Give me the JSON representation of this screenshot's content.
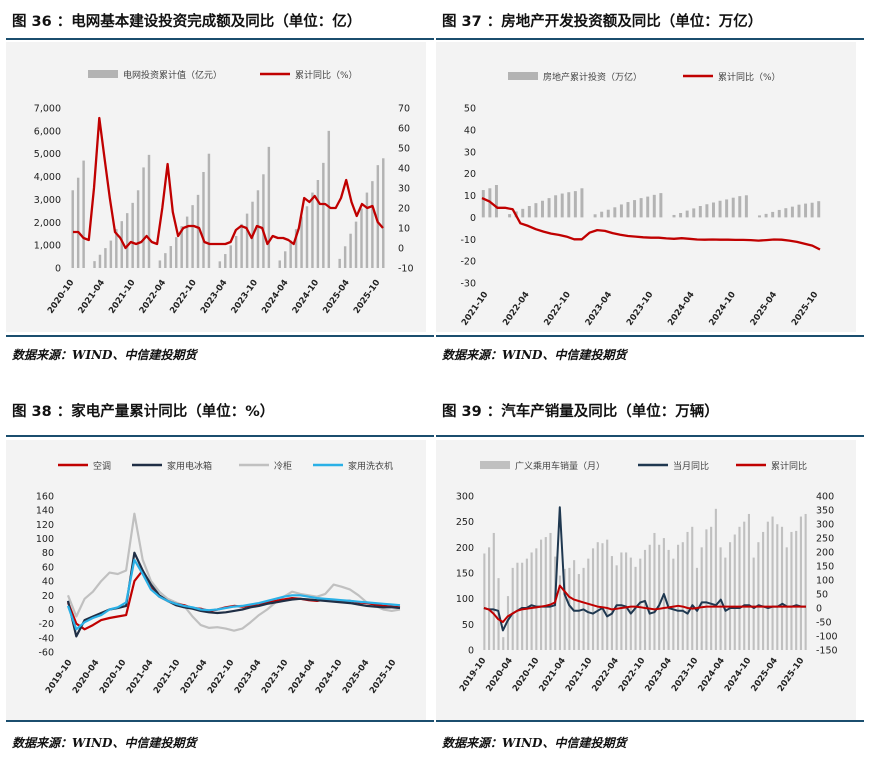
{
  "panels": [
    {
      "id": "p36",
      "title": "图 36 ：电网基本建设投资完成额及同比（单位：亿）",
      "source": "数据来源：WIND、中信建投期货",
      "chart_data": {
        "type": "bar+line",
        "legend": [
          "电网投资累计值（亿元）",
          "累计同比（%）"
        ],
        "legend_position": "top-center",
        "grid": false,
        "colors": {
          "bar": "#b3b3b3",
          "line": "#c00000"
        },
        "y_left": {
          "ticks": [
            "0",
            "1,000",
            "2,000",
            "3,000",
            "4,000",
            "5,000",
            "6,000",
            "7,000"
          ],
          "min": 0,
          "max": 7000
        },
        "y_right": {
          "ticks": [
            "-10",
            "0",
            "10",
            "20",
            "30",
            "40",
            "50",
            "60",
            "70"
          ],
          "min": -10,
          "max": 70
        },
        "x_ticks": [
          "2020-10",
          "2021-04",
          "2021-10",
          "2022-04",
          "2022-10",
          "2023-04",
          "2023-10",
          "2024-04",
          "2024-10",
          "2025-04",
          "2025-10"
        ],
        "bars": [
          3400,
          3950,
          4700,
          0,
          300,
          580,
          870,
          1200,
          1700,
          2050,
          2400,
          2850,
          3400,
          4400,
          4950,
          0,
          330,
          650,
          960,
          1350,
          1830,
          2250,
          2750,
          3200,
          4200,
          5000,
          0,
          290,
          610,
          990,
          1400,
          1930,
          2380,
          2900,
          3400,
          4100,
          5300,
          0,
          330,
          730,
          1200,
          1700,
          2250,
          2700,
          3300,
          3850,
          4600,
          6000,
          0,
          400,
          950,
          1500,
          2030,
          2600,
          3300,
          3800,
          4500,
          4800
        ],
        "line": [
          8,
          8,
          5,
          4,
          30,
          65,
          45,
          25,
          8,
          5,
          0,
          3,
          2,
          3,
          6,
          3,
          2,
          20,
          42,
          18,
          6,
          10,
          11,
          11,
          10,
          3,
          2,
          2,
          2,
          2,
          3,
          9,
          11,
          10,
          5,
          11,
          10,
          2,
          6,
          5,
          5,
          4,
          2,
          10,
          25,
          23,
          26,
          22,
          22,
          20,
          20,
          25,
          34,
          23,
          16,
          22,
          20,
          21,
          13,
          10
        ]
      }
    },
    {
      "id": "p37",
      "title": "图 37 ：房地产开发投资额及同比（单位：万亿）",
      "source": "数据来源：WIND、中信建投期货",
      "chart_data": {
        "type": "bar+line",
        "legend": [
          "房地产累计投资（万亿）",
          "累计同比（%）"
        ],
        "legend_position": "top-center",
        "grid": false,
        "colors": {
          "bar": "#b3b3b3",
          "line": "#c00000"
        },
        "y_ticks": [
          "-30",
          "-20",
          "-10",
          "0",
          "10",
          "20",
          "30",
          "40",
          "50"
        ],
        "ylim": [
          -30,
          50
        ],
        "x_ticks": [
          "2021-10",
          "2022-04",
          "2022-10",
          "2023-04",
          "2023-10",
          "2024-04",
          "2024-10",
          "2025-04",
          "2025-10"
        ],
        "bars": [
          12.5,
          13.3,
          14.8,
          0,
          1.5,
          2.7,
          3.9,
          5.2,
          6.5,
          7.6,
          8.8,
          10.1,
          10.9,
          11.5,
          12.0,
          13.3,
          0,
          1.4,
          2.6,
          3.5,
          4.6,
          5.9,
          7.0,
          7.9,
          8.8,
          9.5,
          10.3,
          11.1,
          0,
          1.1,
          2.0,
          3.1,
          4.1,
          5.2,
          6.0,
          6.8,
          7.6,
          8.2,
          9.0,
          9.7,
          10.1,
          0,
          0.9,
          1.6,
          2.5,
          3.4,
          4.2,
          4.9,
          5.8,
          6.3,
          6.7,
          7.4
        ]
      },
      "line_values": [
        8.8,
        7.2,
        4.4,
        4.4,
        3.7,
        -2.7,
        -3.9,
        -5.4,
        -6.5,
        -7.4,
        -8.0,
        -8.8,
        -10.0,
        -10.0,
        -7.0,
        -5.8,
        -6.2,
        -7.2,
        -7.9,
        -8.5,
        -8.8,
        -9.1,
        -9.3,
        -9.3,
        -9.6,
        -9.8,
        -9.5,
        -9.8,
        -10.1,
        -10.2,
        -10.1,
        -10.2,
        -10.2,
        -10.3,
        -10.3,
        -10.4,
        -10.6,
        -10.4,
        -10.1,
        -10.2,
        -10.6,
        -11.2,
        -12.1,
        -12.9,
        -14.7
      ]
    },
    {
      "id": "p38",
      "title": "图 38 ：家电产量累计同比（单位：%）",
      "source": "数据来源：WIND、中信建投期货",
      "chart_data": {
        "type": "line",
        "legend_position": "top-center",
        "grid": false,
        "y_ticks": [
          "-60",
          "-40",
          "-20",
          "0",
          "20",
          "40",
          "60",
          "80",
          "100",
          "120",
          "140",
          "160"
        ],
        "ylim": [
          -60,
          160
        ],
        "x_ticks": [
          "2019-10",
          "2020-04",
          "2020-10",
          "2021-04",
          "2021-10",
          "2022-04",
          "2022-10",
          "2023-04",
          "2023-10",
          "2024-04",
          "2024-10",
          "2025-04",
          "2025-10"
        ],
        "series": [
          {
            "name": "空调",
            "color": "#c00000",
            "values": [
              10,
              -20,
              -28,
              -22,
              -15,
              -12,
              -10,
              -8,
              40,
              55,
              30,
              18,
              12,
              8,
              6,
              2,
              1,
              -2,
              0,
              3,
              5,
              4,
              5,
              6,
              10,
              12,
              14,
              16,
              15,
              13,
              12,
              14,
              13,
              12,
              12,
              10,
              9,
              7,
              5,
              4,
              3
            ]
          },
          {
            "name": "家用电冰箱",
            "color": "#1f2e45",
            "values": [
              12,
              -38,
              -15,
              -10,
              -5,
              0,
              2,
              5,
              80,
              55,
              35,
              20,
              12,
              6,
              3,
              1,
              -2,
              -4,
              -5,
              -4,
              -2,
              0,
              3,
              5,
              8,
              10,
              12,
              14,
              15,
              14,
              13,
              12,
              11,
              10,
              9,
              7,
              5,
              4,
              3,
              3,
              2
            ]
          },
          {
            "name": "冷柜",
            "color": "#c0c0c0",
            "values": [
              20,
              -10,
              15,
              25,
              40,
              52,
              50,
              55,
              135,
              70,
              40,
              25,
              15,
              10,
              5,
              -10,
              -22,
              -26,
              -25,
              -27,
              -30,
              -27,
              -18,
              -8,
              0,
              10,
              18,
              25,
              22,
              20,
              18,
              22,
              35,
              32,
              28,
              20,
              10,
              5,
              0,
              -2,
              0
            ]
          },
          {
            "name": "家用洗衣机",
            "color": "#2ab0e6",
            "values": [
              5,
              -28,
              -18,
              -12,
              -8,
              0,
              3,
              10,
              70,
              50,
              28,
              18,
              12,
              8,
              5,
              3,
              0,
              -1,
              0,
              2,
              4,
              5,
              7,
              9,
              12,
              15,
              18,
              20,
              20,
              18,
              16,
              15,
              14,
              13,
              12,
              11,
              10,
              9,
              8,
              7,
              6
            ]
          }
        ]
      }
    },
    {
      "id": "p39",
      "title": "图 39 ：汽车产销量及同比（单位：万辆）",
      "source": "数据来源：WIND、中信建投期货",
      "chart_data": {
        "type": "bar+line",
        "legend_position": "top-center",
        "grid": false,
        "series_names": [
          "广义乘用车销量（月）",
          "当月同比",
          "累计同比"
        ],
        "colors": {
          "bar": "#c0c0c0",
          "monthly": "#1f3850",
          "cumulative": "#c00000"
        },
        "y_left": {
          "ticks": [
            "0",
            "50",
            "100",
            "150",
            "200",
            "250",
            "300"
          ],
          "min": 0,
          "max": 300
        },
        "y_right": {
          "ticks": [
            "-150",
            "-100",
            "-50",
            "0",
            "50",
            "100",
            "150",
            "200",
            "250",
            "300",
            "350",
            "400"
          ],
          "min": -150,
          "max": 400
        },
        "x_ticks": [
          "2019-10",
          "2020-04",
          "2020-10",
          "2021-04",
          "2021-10",
          "2022-04",
          "2022-10",
          "2023-04",
          "2023-10",
          "2024-04",
          "2024-10",
          "2025-04",
          "2025-10"
        ],
        "bars": [
          188,
          200,
          228,
          140,
          25,
          105,
          160,
          170,
          170,
          178,
          190,
          198,
          215,
          220,
          228,
          182,
          145,
          158,
          160,
          175,
          148,
          160,
          178,
          198,
          210,
          208,
          215,
          183,
          165,
          190,
          190,
          180,
          162,
          178,
          195,
          205,
          228,
          205,
          218,
          195,
          178,
          205,
          210,
          230,
          240,
          160,
          200,
          235,
          240,
          275,
          200,
          180,
          210,
          225,
          240,
          250,
          265,
          180,
          210,
          230,
          250,
          260,
          245,
          240,
          200,
          230,
          232,
          260,
          265
        ]
      },
      "monthly_values": [
        0,
        -5,
        -5,
        -10,
        -80,
        -45,
        -20,
        -10,
        0,
        0,
        10,
        5,
        5,
        5,
        5,
        10,
        360,
        50,
        10,
        -10,
        -10,
        -5,
        -15,
        -20,
        -10,
        0,
        -30,
        -20,
        10,
        10,
        5,
        -20,
        0,
        20,
        25,
        -20,
        -15,
        10,
        50,
        0,
        -5,
        -10,
        -10,
        -20,
        10,
        -10,
        20,
        20,
        15,
        10,
        30,
        -10,
        0,
        0,
        0,
        10,
        10,
        0,
        10,
        5,
        0,
        5,
        5,
        15,
        5,
        5,
        10,
        5,
        5
      ]
    }
  ]
}
